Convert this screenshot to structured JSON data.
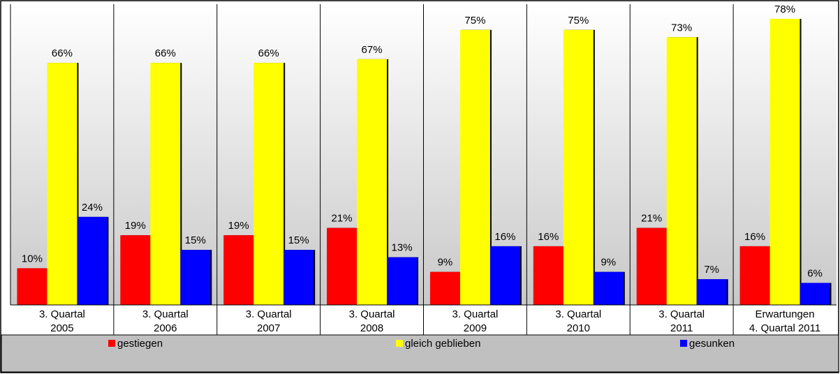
{
  "chart_data": {
    "type": "bar",
    "categories": [
      [
        "3. Quartal",
        "2005"
      ],
      [
        "3. Quartal",
        "2006"
      ],
      [
        "3. Quartal",
        "2007"
      ],
      [
        "3. Quartal",
        "2008"
      ],
      [
        "3. Quartal",
        "2009"
      ],
      [
        "3. Quartal",
        "2010"
      ],
      [
        "3. Quartal",
        "2011"
      ],
      [
        "Erwartungen",
        "4. Quartal 2011"
      ]
    ],
    "series": [
      {
        "name": "gestiegen",
        "color": "#ff0000",
        "values": [
          10,
          19,
          19,
          21,
          9,
          16,
          21,
          16
        ]
      },
      {
        "name": "gleich geblieben",
        "color": "#ffff00",
        "values": [
          66,
          66,
          66,
          67,
          75,
          75,
          73,
          78
        ]
      },
      {
        "name": "gesunken",
        "color": "#0000ff",
        "values": [
          24,
          15,
          15,
          13,
          16,
          9,
          7,
          6
        ]
      }
    ],
    "value_suffix": "%",
    "ylim": [
      0,
      82
    ],
    "grid": false,
    "legend_position": "bottom",
    "background": "vertical gradient white to light grey"
  }
}
